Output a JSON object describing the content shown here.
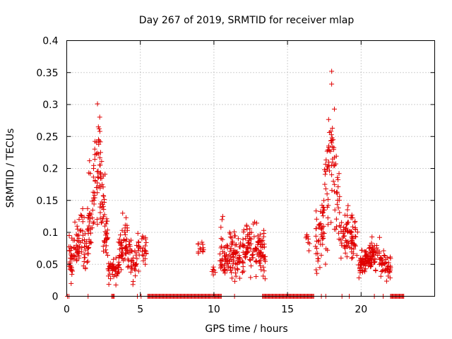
{
  "chart_data": {
    "type": "scatter",
    "title": "Day 267 of 2019, SRMTID for receiver mlap",
    "xlabel": "GPS time / hours",
    "ylabel": "SRMTID / TECUs",
    "xlim": [
      0,
      25
    ],
    "ylim": [
      0,
      0.4
    ],
    "x_ticks": [
      0,
      5,
      10,
      15,
      20
    ],
    "y_ticks": [
      0,
      0.05,
      0.1,
      0.15,
      0.2,
      0.25,
      0.3,
      0.35,
      0.4
    ],
    "y_tick_labels": [
      "0",
      "0.05",
      "0.1",
      "0.15",
      "0.2",
      "0.25",
      "0.3",
      "0.35",
      "0.4"
    ],
    "grid": true,
    "marker": "+",
    "marker_color": "#e00000",
    "clusters": [
      {
        "x_range": [
          0.15,
          1.4
        ],
        "count": 90,
        "base": 0.06,
        "noise": 0.018,
        "peak_x": 1.0,
        "peak_y": 0.09
      },
      {
        "x_range": [
          1.4,
          2.8
        ],
        "count": 130,
        "base": 0.085,
        "noise": 0.02,
        "peak_x": 2.1,
        "peak_y": 0.2
      },
      {
        "x_range": [
          2.8,
          3.5
        ],
        "count": 45,
        "base": 0.04,
        "noise": 0.008,
        "peak_x": 3.1,
        "peak_y": 0.045
      },
      {
        "x_range": [
          3.5,
          4.7
        ],
        "count": 90,
        "base": 0.05,
        "noise": 0.015,
        "peak_x": 3.9,
        "peak_y": 0.08
      },
      {
        "x_range": [
          4.7,
          5.4
        ],
        "count": 35,
        "base": 0.07,
        "noise": 0.012,
        "peak_x": 5.0,
        "peak_y": 0.08
      },
      {
        "x_range": [
          8.9,
          9.3
        ],
        "count": 12,
        "base": 0.075,
        "noise": 0.006,
        "peak_x": 9.1,
        "peak_y": 0.08
      },
      {
        "x_range": [
          9.8,
          10.1
        ],
        "count": 6,
        "base": 0.038,
        "noise": 0.004,
        "peak_x": 9.9,
        "peak_y": 0.04
      },
      {
        "x_range": [
          10.4,
          13.5
        ],
        "count": 230,
        "base": 0.055,
        "noise": 0.017,
        "peak_x": 12.5,
        "peak_y": 0.075
      },
      {
        "x_range": [
          16.2,
          16.5
        ],
        "count": 8,
        "base": 0.085,
        "noise": 0.006,
        "peak_x": 16.3,
        "peak_y": 0.09
      },
      {
        "x_range": [
          16.9,
          18.6
        ],
        "count": 120,
        "base": 0.09,
        "noise": 0.025,
        "peak_x": 18.0,
        "peak_y": 0.2
      },
      {
        "x_range": [
          18.6,
          19.8
        ],
        "count": 80,
        "base": 0.085,
        "noise": 0.015,
        "peak_x": 19.2,
        "peak_y": 0.1
      },
      {
        "x_range": [
          19.8,
          22.0
        ],
        "count": 160,
        "base": 0.045,
        "noise": 0.01,
        "peak_x": 20.9,
        "peak_y": 0.07
      }
    ],
    "outliers": [
      {
        "x": 18.0,
        "y": 0.352
      },
      {
        "x": 18.0,
        "y": 0.332
      },
      {
        "x": 18.05,
        "y": 0.263
      },
      {
        "x": 17.95,
        "y": 0.258
      },
      {
        "x": 18.1,
        "y": 0.245
      },
      {
        "x": 2.15,
        "y": 0.265
      },
      {
        "x": 2.2,
        "y": 0.262
      },
      {
        "x": 2.25,
        "y": 0.258
      },
      {
        "x": 2.2,
        "y": 0.243
      },
      {
        "x": 2.3,
        "y": 0.225
      },
      {
        "x": 1.55,
        "y": 0.212
      },
      {
        "x": 1.5,
        "y": 0.193
      },
      {
        "x": 1.6,
        "y": 0.192
      },
      {
        "x": 2.6,
        "y": 0.191
      },
      {
        "x": 17.8,
        "y": 0.21
      },
      {
        "x": 18.2,
        "y": 0.205
      },
      {
        "x": 18.5,
        "y": 0.192
      },
      {
        "x": 3.8,
        "y": 0.13
      },
      {
        "x": 10.6,
        "y": 0.125
      },
      {
        "x": 10.55,
        "y": 0.12
      },
      {
        "x": 17.2,
        "y": 0.045
      },
      {
        "x": 0.3,
        "y": 0.02
      }
    ],
    "zero_baseline": [
      {
        "x": 0.05
      },
      {
        "x": 0.15
      },
      {
        "x": 1.45
      },
      {
        "x_range": [
          3.05,
          3.25
        ]
      },
      {
        "x": 4.8
      },
      {
        "x": 5.05
      },
      {
        "x_range": [
          5.5,
          9.85
        ]
      },
      {
        "x_range": [
          9.9,
          10.5
        ]
      },
      {
        "x": 11.4
      },
      {
        "x_range": [
          13.3,
          16.8
        ]
      },
      {
        "x": 17.3
      },
      {
        "x": 17.6
      },
      {
        "x": 18.7
      },
      {
        "x": 19.2
      },
      {
        "x": 20.9
      },
      {
        "x": 21.5
      },
      {
        "x_range": [
          22.0,
          22.9
        ]
      }
    ]
  }
}
